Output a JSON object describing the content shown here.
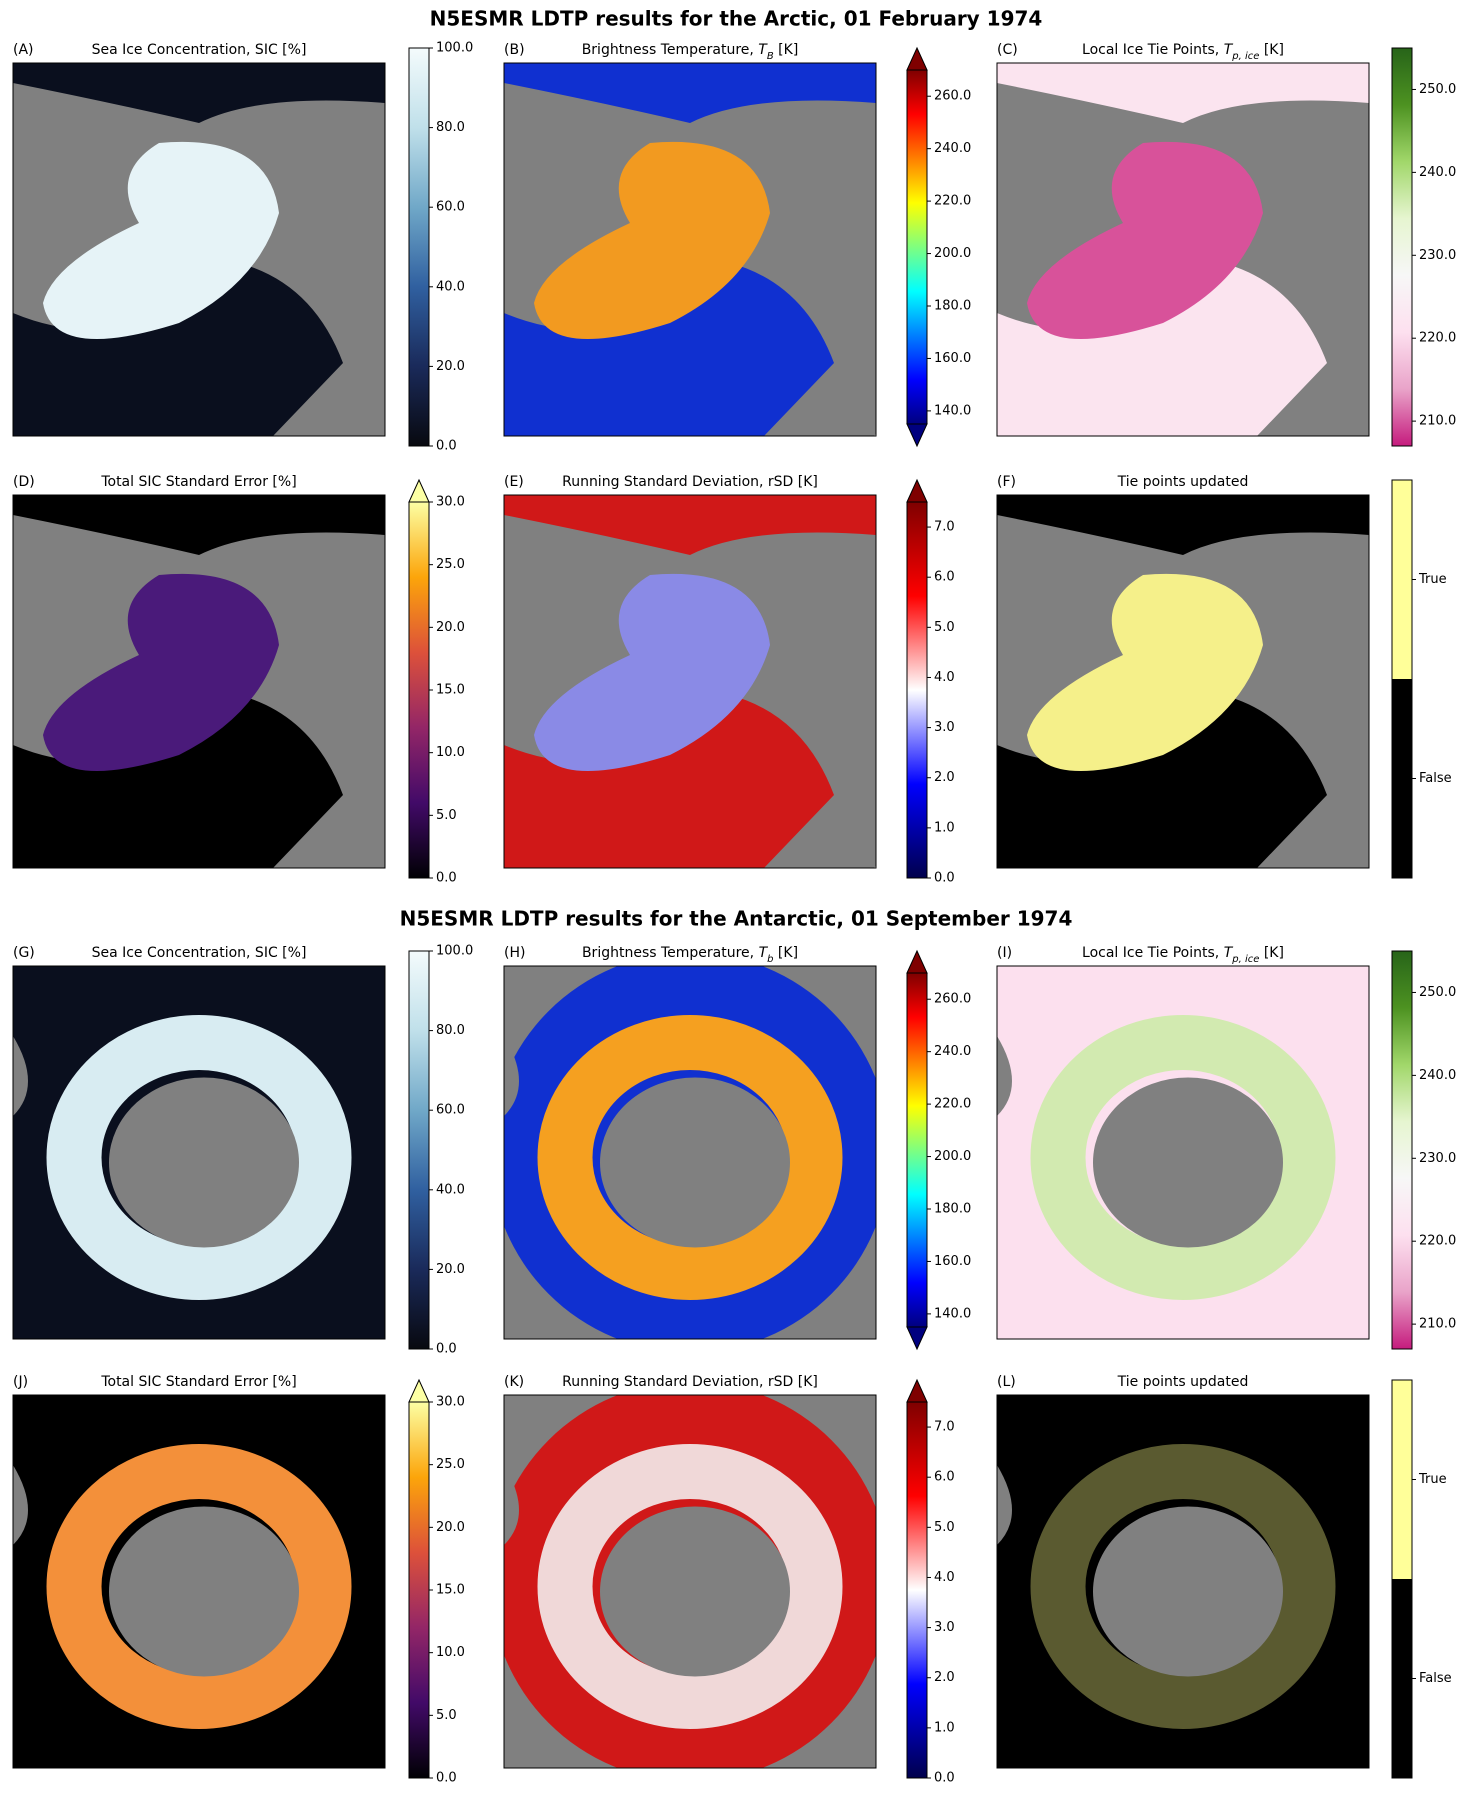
{
  "sections": [
    {
      "title": "N5ESMR LDTP results for the Arctic, 01 February 1974",
      "panels": [
        {
          "label": "(A)",
          "title_parts": [
            {
              "text": "Sea Ice Concentration, SIC [%]"
            }
          ],
          "ocean": "#0a0f1e",
          "ice": "#e6f3f7",
          "colorbar": {
            "colors": [
              "#08090f",
              "#1a2a5a",
              "#3060a0",
              "#70a8c8",
              "#c0e0ea",
              "#f4fbfc"
            ],
            "extend": "neither",
            "lim": [
              0,
              100
            ],
            "ticks": [
              {
                "value": 0,
                "label": "0.0"
              },
              {
                "value": 20,
                "label": "20.0"
              },
              {
                "value": 40,
                "label": "40.0"
              },
              {
                "value": 60,
                "label": "60.0"
              },
              {
                "value": 80,
                "label": "80.0"
              },
              {
                "value": 100,
                "label": "100.0"
              }
            ]
          }
        },
        {
          "label": "(B)",
          "title_parts": [
            {
              "text": "Brightness Temperature, "
            },
            {
              "text": "T",
              "style": "italic"
            },
            {
              "text": "B",
              "style": "sub"
            },
            {
              "text": " [K]"
            }
          ],
          "ocean": "#1030d0",
          "ice": "#f29a20",
          "colorbar": {
            "colors": [
              "#00007f",
              "#0000ff",
              "#007fff",
              "#00ffff",
              "#7fff7f",
              "#ffff00",
              "#ff7f00",
              "#ff0000",
              "#7f0000"
            ],
            "extend": "both",
            "lim": [
              135,
              270
            ],
            "ticks": [
              {
                "value": 140,
                "label": "140.0"
              },
              {
                "value": 160,
                "label": "160.0"
              },
              {
                "value": 180,
                "label": "180.0"
              },
              {
                "value": 200,
                "label": "200.0"
              },
              {
                "value": 220,
                "label": "220.0"
              },
              {
                "value": 240,
                "label": "240.0"
              },
              {
                "value": 260,
                "label": "260.0"
              }
            ]
          }
        },
        {
          "label": "(C)",
          "title_parts": [
            {
              "text": "Local Ice Tie Points, "
            },
            {
              "text": "T",
              "style": "italic"
            },
            {
              "text": "p, ice",
              "style": "sub"
            },
            {
              "text": " [K]"
            }
          ],
          "ocean": "#fbe4ef",
          "ice": "#d8529a",
          "colorbar": {
            "colors": [
              "#c51b7d",
              "#e9a3c9",
              "#fde0ef",
              "#f7f7f7",
              "#e6f5d0",
              "#a1d76a",
              "#4d9221",
              "#276419"
            ],
            "extend": "neither",
            "lim": [
              207,
              255
            ],
            "ticks": [
              {
                "value": 210,
                "label": "210.0"
              },
              {
                "value": 220,
                "label": "220.0"
              },
              {
                "value": 230,
                "label": "230.0"
              },
              {
                "value": 240,
                "label": "240.0"
              },
              {
                "value": 250,
                "label": "250.0"
              }
            ]
          }
        },
        {
          "label": "(D)",
          "title_parts": [
            {
              "text": "Total SIC Standard Error [%]"
            }
          ],
          "ocean": "#000000",
          "ice": "#4a1a7a",
          "colorbar": {
            "colors": [
              "#000004",
              "#420a68",
              "#932667",
              "#dd513a",
              "#fca50a",
              "#fcffa4"
            ],
            "extend": "max",
            "lim": [
              0,
              30
            ],
            "ticks": [
              {
                "value": 0,
                "label": "0.0"
              },
              {
                "value": 5,
                "label": "5.0"
              },
              {
                "value": 10,
                "label": "10.0"
              },
              {
                "value": 15,
                "label": "15.0"
              },
              {
                "value": 20,
                "label": "20.0"
              },
              {
                "value": 25,
                "label": "25.0"
              },
              {
                "value": 30,
                "label": "30.0"
              }
            ]
          }
        },
        {
          "label": "(E)",
          "title_parts": [
            {
              "text": "Running Standard Deviation, rSD [K]"
            }
          ],
          "ocean": "#d01818",
          "ice": "#8a8ae6",
          "colorbar": {
            "colors": [
              "#00004c",
              "#0000ff",
              "#ffffff",
              "#ff0000",
              "#7f0000"
            ],
            "extend": "max",
            "lim": [
              0,
              7.5
            ],
            "ticks": [
              {
                "value": 0,
                "label": "0.0"
              },
              {
                "value": 1,
                "label": "1.0"
              },
              {
                "value": 2,
                "label": "2.0"
              },
              {
                "value": 3,
                "label": "3.0"
              },
              {
                "value": 4,
                "label": "4.0"
              },
              {
                "value": 5,
                "label": "5.0"
              },
              {
                "value": 6,
                "label": "6.0"
              },
              {
                "value": 7,
                "label": "7.0"
              }
            ]
          }
        },
        {
          "label": "(F)",
          "title_parts": [
            {
              "text": "Tie points updated"
            }
          ],
          "ocean": "#000000",
          "ice": "#f5f08a",
          "colorbar": {
            "categories": [
              {
                "label": "False",
                "color": "#000000"
              },
              {
                "label": "True",
                "color": "#ffff99"
              }
            ]
          }
        }
      ]
    },
    {
      "title": "N5ESMR LDTP results for the Antarctic, 01 September 1974",
      "panels": [
        {
          "label": "(G)",
          "title_parts": [
            {
              "text": "Sea Ice Concentration, SIC [%]"
            }
          ],
          "ocean": "#0a0f1e",
          "ice": "#d8ecf2",
          "colorbar": {
            "colors": [
              "#08090f",
              "#1a2a5a",
              "#3060a0",
              "#70a8c8",
              "#c0e0ea",
              "#f4fbfc"
            ],
            "extend": "neither",
            "lim": [
              0,
              100
            ],
            "ticks": [
              {
                "value": 0,
                "label": "0.0"
              },
              {
                "value": 20,
                "label": "20.0"
              },
              {
                "value": 40,
                "label": "40.0"
              },
              {
                "value": 60,
                "label": "60.0"
              },
              {
                "value": 80,
                "label": "80.0"
              },
              {
                "value": 100,
                "label": "100.0"
              }
            ]
          }
        },
        {
          "label": "(H)",
          "title_parts": [
            {
              "text": "Brightness Temperature, "
            },
            {
              "text": "T",
              "style": "italic"
            },
            {
              "text": "b",
              "style": "sub"
            },
            {
              "text": " [K]"
            }
          ],
          "ocean": "#1030d0",
          "ice": "#f5a020",
          "colorbar": {
            "colors": [
              "#00007f",
              "#0000ff",
              "#007fff",
              "#00ffff",
              "#7fff7f",
              "#ffff00",
              "#ff7f00",
              "#ff0000",
              "#7f0000"
            ],
            "extend": "both",
            "lim": [
              135,
              270
            ],
            "ticks": [
              {
                "value": 140,
                "label": "140.0"
              },
              {
                "value": 160,
                "label": "160.0"
              },
              {
                "value": 180,
                "label": "180.0"
              },
              {
                "value": 200,
                "label": "200.0"
              },
              {
                "value": 220,
                "label": "220.0"
              },
              {
                "value": 240,
                "label": "240.0"
              },
              {
                "value": 260,
                "label": "260.0"
              }
            ]
          }
        },
        {
          "label": "(I)",
          "title_parts": [
            {
              "text": "Local Ice Tie Points, "
            },
            {
              "text": "T",
              "style": "italic"
            },
            {
              "text": "p, ice",
              "style": "sub"
            },
            {
              "text": " [K]"
            }
          ],
          "ocean": "#fce0ee",
          "ice": "#d2eab0",
          "colorbar": {
            "colors": [
              "#c51b7d",
              "#e9a3c9",
              "#fde0ef",
              "#f7f7f7",
              "#e6f5d0",
              "#a1d76a",
              "#4d9221",
              "#276419"
            ],
            "extend": "neither",
            "lim": [
              207,
              255
            ],
            "ticks": [
              {
                "value": 210,
                "label": "210.0"
              },
              {
                "value": 220,
                "label": "220.0"
              },
              {
                "value": 230,
                "label": "230.0"
              },
              {
                "value": 240,
                "label": "240.0"
              },
              {
                "value": 250,
                "label": "250.0"
              }
            ]
          }
        },
        {
          "label": "(J)",
          "title_parts": [
            {
              "text": "Total SIC Standard Error [%]"
            }
          ],
          "ocean": "#000000",
          "ice": "#f3903a",
          "colorbar": {
            "colors": [
              "#000004",
              "#420a68",
              "#932667",
              "#dd513a",
              "#fca50a",
              "#fcffa4"
            ],
            "extend": "max",
            "lim": [
              0,
              30
            ],
            "ticks": [
              {
                "value": 0,
                "label": "0.0"
              },
              {
                "value": 5,
                "label": "5.0"
              },
              {
                "value": 10,
                "label": "10.0"
              },
              {
                "value": 15,
                "label": "15.0"
              },
              {
                "value": 20,
                "label": "20.0"
              },
              {
                "value": 25,
                "label": "25.0"
              },
              {
                "value": 30,
                "label": "30.0"
              }
            ]
          }
        },
        {
          "label": "(K)",
          "title_parts": [
            {
              "text": "Running Standard Deviation, rSD [K]"
            }
          ],
          "ocean": "#d01818",
          "ice": "#f0d8d8",
          "colorbar": {
            "colors": [
              "#00004c",
              "#0000ff",
              "#ffffff",
              "#ff0000",
              "#7f0000"
            ],
            "extend": "max",
            "lim": [
              0,
              7.5
            ],
            "ticks": [
              {
                "value": 0,
                "label": "0.0"
              },
              {
                "value": 1,
                "label": "1.0"
              },
              {
                "value": 2,
                "label": "2.0"
              },
              {
                "value": 3,
                "label": "3.0"
              },
              {
                "value": 4,
                "label": "4.0"
              },
              {
                "value": 5,
                "label": "5.0"
              },
              {
                "value": 6,
                "label": "6.0"
              },
              {
                "value": 7,
                "label": "7.0"
              }
            ]
          }
        },
        {
          "label": "(L)",
          "title_parts": [
            {
              "text": "Tie points updated"
            }
          ],
          "ocean": "#000000",
          "ice": "#5a5a30",
          "colorbar": {
            "categories": [
              {
                "label": "False",
                "color": "#000000"
              },
              {
                "label": "True",
                "color": "#ffff99"
              }
            ]
          }
        }
      ]
    }
  ]
}
